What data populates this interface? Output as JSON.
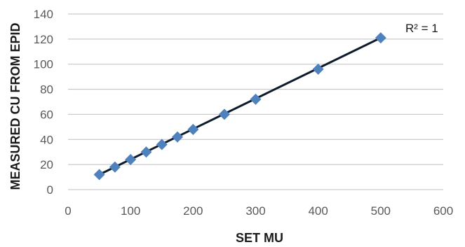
{
  "chart_data": {
    "type": "scatter",
    "title": "",
    "xlabel": "SET MU",
    "ylabel": "MEASURED CU FROM EPID",
    "xlim": [
      0,
      600
    ],
    "ylim": [
      0,
      140
    ],
    "x_ticks": [
      0,
      100,
      200,
      300,
      400,
      500,
      600
    ],
    "y_ticks": [
      0,
      20,
      40,
      60,
      80,
      100,
      120,
      140
    ],
    "grid": "horizontal",
    "legend": "none",
    "series": [
      {
        "marker": "diamond",
        "color": "#4f81bd",
        "x": [
          50,
          75,
          100,
          125,
          150,
          175,
          200,
          250,
          300,
          400,
          500
        ],
        "y": [
          12,
          18,
          24,
          30,
          36,
          42,
          48,
          60,
          72,
          96,
          121
        ]
      }
    ],
    "trendline": {
      "type": "linear",
      "color": "#0d1b2a",
      "x": [
        50,
        500
      ],
      "y": [
        12,
        121
      ],
      "annotation": "R² = 1"
    }
  }
}
